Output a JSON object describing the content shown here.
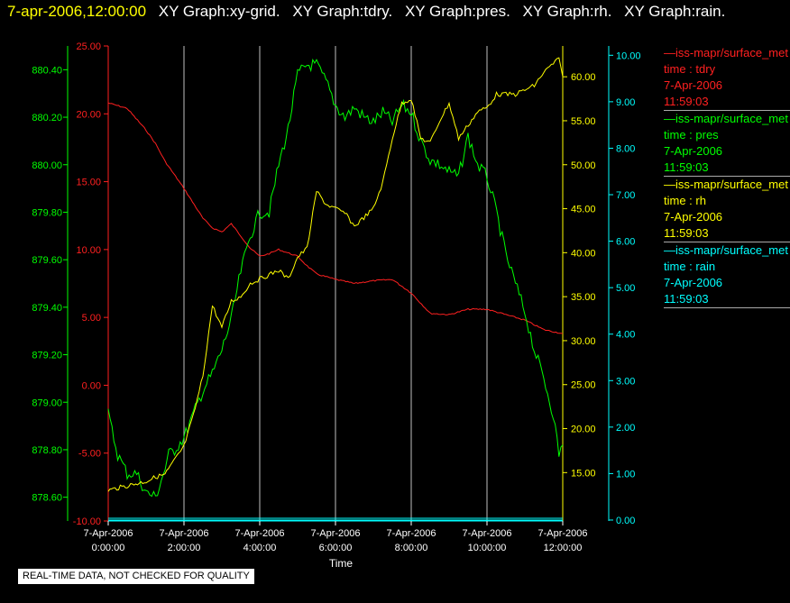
{
  "header": {
    "datetime": "7-apr-2006,12:00:00",
    "graphs": [
      "XY Graph:xy-grid.",
      "XY Graph:tdry.",
      "XY Graph:pres.",
      "XY Graph:rh.",
      "XY Graph:rain."
    ]
  },
  "colors": {
    "tdry": "#ff2020",
    "pres": "#00ff00",
    "rh": "#ffff00",
    "rain": "#00ffff",
    "grid": "#c0c0c0"
  },
  "chart_data": {
    "type": "line",
    "xlabel": "Time",
    "x_ticks": [
      "7-Apr-2006 0:00:00",
      "7-Apr-2006 2:00:00",
      "7-Apr-2006 4:00:00",
      "7-Apr-2006 6:00:00",
      "7-Apr-2006 8:00:00",
      "7-Apr-2006 10:00:00",
      "7-Apr-2006 12:00:00"
    ],
    "x_tick_lines": [
      [
        "7-Apr-2006",
        "0:00:00"
      ],
      [
        "7-Apr-2006",
        "2:00:00"
      ],
      [
        "7-Apr-2006",
        "4:00:00"
      ],
      [
        "7-Apr-2006",
        "6:00:00"
      ],
      [
        "7-Apr-2006",
        "8:00:00"
      ],
      [
        "7-Apr-2006",
        "10:00:00"
      ],
      [
        "7-Apr-2006",
        "12:00:00"
      ]
    ],
    "x_range_hours": [
      0,
      12
    ],
    "grid": "vertical",
    "axes": {
      "tdry": {
        "range": [
          -10,
          25
        ],
        "ticks": [
          "25.00",
          "20.00",
          "15.00",
          "10.00",
          "5.00",
          "0.00",
          "-5.00",
          "-10.00"
        ]
      },
      "pres": {
        "range": [
          878.5,
          880.5
        ],
        "ticks": [
          "880.40",
          "880.20",
          "880.00",
          "879.80",
          "879.60",
          "879.40",
          "879.20",
          "879.00",
          "878.80",
          "878.60"
        ]
      },
      "rh": {
        "range": [
          9.5,
          63.5
        ],
        "ticks": [
          "60.00",
          "55.00",
          "50.00",
          "45.00",
          "40.00",
          "35.00",
          "30.00",
          "25.00",
          "20.00",
          "15.00"
        ]
      },
      "rain": {
        "range": [
          -0.02,
          10.2
        ],
        "ticks": [
          "10.00",
          "9.00",
          "8.00",
          "7.00",
          "6.00",
          "5.00",
          "4.00",
          "3.00",
          "2.00",
          "1.00",
          "0.00"
        ]
      }
    },
    "series": [
      {
        "name": "tdry",
        "axis": "tdry",
        "x": [
          0,
          0.5,
          1,
          1.25,
          1.5,
          2,
          2.5,
          2.75,
          3,
          3.25,
          3.5,
          3.75,
          4,
          4.25,
          4.5,
          5,
          5.25,
          5.5,
          6,
          6.5,
          7,
          7.5,
          8,
          8.5,
          9,
          9.5,
          10,
          10.5,
          11,
          11.5,
          12
        ],
        "y": [
          20.8,
          20.4,
          18.8,
          17.8,
          16.5,
          14.5,
          12.3,
          11.6,
          11.3,
          11.9,
          11.0,
          10.1,
          9.5,
          9.7,
          10.0,
          9.5,
          8.8,
          8.2,
          7.8,
          7.5,
          7.7,
          7.8,
          6.8,
          5.3,
          5.2,
          5.6,
          5.6,
          5.2,
          4.8,
          4.1,
          3.8
        ]
      },
      {
        "name": "pres",
        "axis": "pres",
        "x": [
          0,
          0.1,
          0.25,
          0.5,
          0.75,
          1,
          1.25,
          1.5,
          1.6,
          1.75,
          2,
          2.25,
          2.5,
          2.75,
          3,
          3.25,
          3.5,
          3.75,
          4,
          4.25,
          4.5,
          4.75,
          5,
          5.25,
          5.5,
          5.75,
          6,
          6.25,
          6.5,
          6.75,
          7,
          7.25,
          7.5,
          7.75,
          8,
          8.25,
          8.5,
          8.75,
          9,
          9.25,
          9.5,
          9.75,
          10,
          10.25,
          10.5,
          10.75,
          11,
          11.25,
          11.5,
          11.75,
          11.9,
          12
        ],
        "y": [
          878.95,
          878.88,
          878.78,
          878.7,
          878.7,
          878.62,
          878.6,
          878.72,
          878.78,
          878.8,
          878.85,
          878.95,
          879.05,
          879.12,
          879.22,
          879.35,
          879.55,
          879.7,
          879.8,
          879.8,
          880.0,
          880.15,
          880.38,
          880.42,
          880.42,
          880.35,
          880.25,
          880.2,
          880.24,
          880.2,
          880.18,
          880.22,
          880.18,
          880.25,
          880.22,
          880.1,
          880.02,
          880.0,
          879.97,
          879.95,
          880.12,
          880.0,
          879.95,
          879.8,
          879.62,
          879.5,
          879.38,
          879.22,
          879.1,
          878.95,
          878.78,
          878.82
        ]
      },
      {
        "name": "rh",
        "axis": "rh",
        "x": [
          0,
          0.5,
          1,
          1.25,
          1.5,
          2,
          2.25,
          2.5,
          2.75,
          3,
          3.25,
          3.5,
          3.75,
          4,
          4.25,
          4.5,
          4.75,
          5,
          5.25,
          5.5,
          5.75,
          6,
          6.25,
          6.5,
          6.75,
          7,
          7.25,
          7.5,
          7.75,
          8,
          8.25,
          8.5,
          8.75,
          9,
          9.25,
          9.5,
          9.75,
          10,
          10.25,
          10.5,
          10.75,
          11,
          11.25,
          11.5,
          11.75,
          11.9,
          12
        ],
        "y": [
          13.0,
          13.5,
          14.0,
          14.5,
          14.8,
          18.0,
          21.5,
          26.0,
          34.0,
          31.5,
          34.5,
          35.0,
          36.5,
          37.0,
          37.5,
          38.0,
          37.0,
          39.5,
          40.5,
          47.0,
          45.5,
          45.0,
          44.5,
          43.0,
          44.0,
          45.0,
          48.0,
          53.0,
          57.0,
          57.5,
          53.0,
          52.5,
          55.0,
          57.0,
          53.0,
          54.5,
          56.0,
          56.5,
          58.0,
          58.0,
          58.0,
          58.5,
          59.0,
          60.5,
          61.5,
          62.0,
          60.0
        ]
      },
      {
        "name": "rain",
        "axis": "rain",
        "x": [
          0,
          12
        ],
        "y": [
          0,
          0
        ]
      }
    ]
  },
  "legend": [
    {
      "key": "tdry",
      "series_label": "iss-mapr/surface_met",
      "label_time": "time : tdry",
      "date": "7-Apr-2006",
      "clock": "11:59:03"
    },
    {
      "key": "pres",
      "series_label": "iss-mapr/surface_met",
      "label_time": "time : pres",
      "date": "7-Apr-2006",
      "clock": "11:59:03"
    },
    {
      "key": "rh",
      "series_label": "iss-mapr/surface_met",
      "label_time": "time : rh",
      "date": "7-Apr-2006",
      "clock": "11:59:03"
    },
    {
      "key": "rain",
      "series_label": "iss-mapr/surface_met",
      "label_time": "time : rain",
      "date": "7-Apr-2006",
      "clock": "11:59:03"
    }
  ],
  "notice": "REAL-TIME DATA, NOT CHECKED FOR QUALITY"
}
